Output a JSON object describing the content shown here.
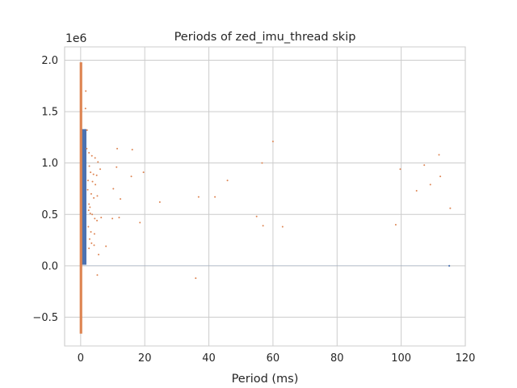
{
  "chart_data": {
    "type": "scatter",
    "title": "Periods of zed_imu_thread skip",
    "xlabel": "Period (ms)",
    "ylabel": "",
    "y_scale_label": "1e6",
    "xlim": [
      -5,
      120
    ],
    "ylim": [
      -0.78,
      2.13
    ],
    "x_ticks": [
      0,
      20,
      40,
      60,
      80,
      100,
      120
    ],
    "x_tick_labels": [
      "0",
      "20",
      "40",
      "60",
      "80",
      "100",
      "120"
    ],
    "y_ticks": [
      -0.5,
      0.0,
      0.5,
      1.0,
      1.5,
      2.0
    ],
    "y_tick_labels": [
      "−0.5",
      "0.0",
      "0.5",
      "1.0",
      "1.5",
      "2.0"
    ],
    "grid": true,
    "colors": {
      "series_a": "#4c72b0",
      "series_b": "#dd8452",
      "grid": "#cccccc",
      "text": "#262626"
    },
    "series": [
      {
        "color": "#4c72b0",
        "dense_block": {
          "x_range": [
            0.3,
            1.8
          ],
          "y_range": [
            0.01,
            1.33
          ]
        },
        "points": [
          [
            0.6,
            0.02
          ],
          [
            0.9,
            0.1
          ],
          [
            1.1,
            0.25
          ],
          [
            0.7,
            0.4
          ],
          [
            1.3,
            0.55
          ],
          [
            0.8,
            0.7
          ],
          [
            1.0,
            0.85
          ],
          [
            1.2,
            1.0
          ],
          [
            0.6,
            1.15
          ],
          [
            1.4,
            1.3
          ],
          [
            115,
            0.0
          ]
        ]
      },
      {
        "color": "#dd8452",
        "dense_strip": {
          "x_range": [
            -0.3,
            0.5
          ],
          "y_range": [
            -0.66,
            1.98
          ]
        },
        "points": [
          [
            1.6,
            1.7
          ],
          [
            1.5,
            1.53
          ],
          [
            2.0,
            1.32
          ],
          [
            1.9,
            1.14
          ],
          [
            2.6,
            1.1
          ],
          [
            3.5,
            1.07
          ],
          [
            4.5,
            1.05
          ],
          [
            5.4,
            1.01
          ],
          [
            6.1,
            0.94
          ],
          [
            2.7,
            0.97
          ],
          [
            3.1,
            0.91
          ],
          [
            4.0,
            0.89
          ],
          [
            5.0,
            0.88
          ],
          [
            2.3,
            0.83
          ],
          [
            3.7,
            0.82
          ],
          [
            4.6,
            0.79
          ],
          [
            2.2,
            0.74
          ],
          [
            3.3,
            0.7
          ],
          [
            5.2,
            0.68
          ],
          [
            4.1,
            0.66
          ],
          [
            2.6,
            0.6
          ],
          [
            2.9,
            0.57
          ],
          [
            2.5,
            0.54
          ],
          [
            3.0,
            0.51
          ],
          [
            3.6,
            0.5
          ],
          [
            4.4,
            0.46
          ],
          [
            5.1,
            0.44
          ],
          [
            6.4,
            0.47
          ],
          [
            2.4,
            0.38
          ],
          [
            3.2,
            0.33
          ],
          [
            4.3,
            0.31
          ],
          [
            2.8,
            0.26
          ],
          [
            3.4,
            0.22
          ],
          [
            4.2,
            0.2
          ],
          [
            2.6,
            0.17
          ],
          [
            5.6,
            0.11
          ],
          [
            7.9,
            0.19
          ],
          [
            5.2,
            -0.09
          ],
          [
            10.2,
            0.75
          ],
          [
            11.4,
            1.14
          ],
          [
            11.2,
            0.96
          ],
          [
            12.4,
            0.65
          ],
          [
            12.0,
            0.47
          ],
          [
            9.9,
            0.46
          ],
          [
            15.8,
            0.87
          ],
          [
            16.1,
            1.13
          ],
          [
            18.5,
            0.42
          ],
          [
            19.6,
            0.91
          ],
          [
            24.7,
            0.62
          ],
          [
            35.9,
            -0.12
          ],
          [
            36.8,
            0.67
          ],
          [
            41.9,
            0.67
          ],
          [
            45.8,
            0.83
          ],
          [
            54.9,
            0.48
          ],
          [
            56.6,
            1.0
          ],
          [
            56.9,
            0.39
          ],
          [
            60.0,
            1.21
          ],
          [
            63.0,
            0.38
          ],
          [
            98.3,
            0.4
          ],
          [
            99.7,
            0.94
          ],
          [
            104.8,
            0.73
          ],
          [
            107.2,
            0.98
          ],
          [
            109.1,
            0.79
          ],
          [
            111.8,
            1.08
          ],
          [
            112.2,
            0.87
          ],
          [
            115.3,
            0.56
          ]
        ]
      }
    ]
  }
}
